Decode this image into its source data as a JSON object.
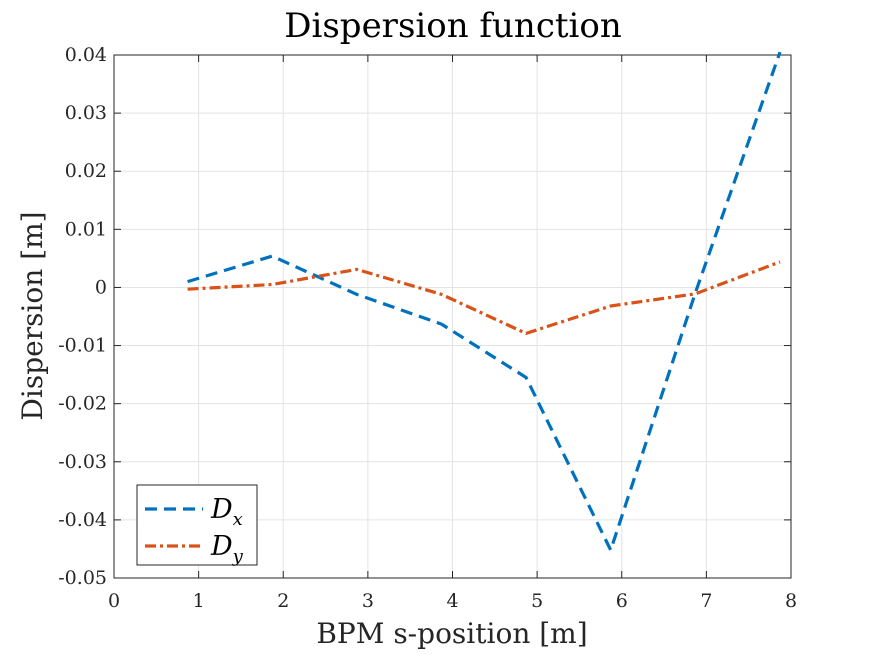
{
  "chart_data": {
    "type": "line",
    "title": "Dispersion function",
    "xlabel": "BPM s-position [m]",
    "ylabel": "Dispersion [m]",
    "xlim": [
      0,
      8
    ],
    "ylim": [
      -0.05,
      0.04
    ],
    "xticks": [
      0,
      1,
      2,
      3,
      4,
      5,
      6,
      7,
      8
    ],
    "yticks": [
      0.04,
      0.03,
      0.02,
      0.01,
      0,
      -0.01,
      -0.02,
      -0.03,
      -0.04,
      -0.05
    ],
    "xtick_labels": [
      "0",
      "1",
      "2",
      "3",
      "4",
      "5",
      "6",
      "7",
      "8"
    ],
    "ytick_labels": [
      "0.04",
      "0.03",
      "0.02",
      "0.01",
      "0",
      "-0.01",
      "-0.02",
      "-0.03",
      "-0.04",
      "-0.05"
    ],
    "grid": true,
    "legend_position": "bottom-left",
    "series": [
      {
        "name": "D",
        "subscript": "x",
        "color": "#0072BD",
        "dash": "dashed",
        "x": [
          0.87,
          1.87,
          2.87,
          3.87,
          4.87,
          5.87,
          6.87,
          7.87
        ],
        "y": [
          0.001,
          0.0054,
          -0.0012,
          -0.0063,
          -0.0155,
          -0.0452,
          -0.0009,
          0.0405
        ]
      },
      {
        "name": "D",
        "subscript": "y",
        "color": "#D95319",
        "dash": "dash-dot",
        "x": [
          0.87,
          1.87,
          2.87,
          3.87,
          4.87,
          5.87,
          6.87,
          7.87
        ],
        "y": [
          -0.0003,
          0.0005,
          0.0031,
          -0.0012,
          -0.0079,
          -0.0032,
          -0.0011,
          0.0044
        ]
      }
    ]
  }
}
